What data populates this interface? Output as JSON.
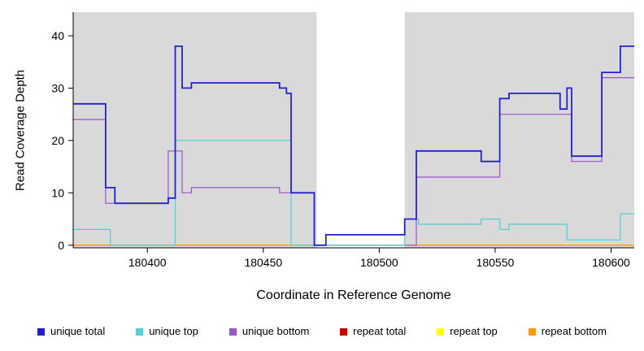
{
  "chart_data": {
    "type": "line",
    "style": "step",
    "title": "",
    "xlabel": "Coordinate in Reference Genome",
    "ylabel": "Read Coverage Depth",
    "xlim": [
      180368,
      180610
    ],
    "ylim": [
      -0.5,
      44.5
    ],
    "xticks": [
      180400,
      180450,
      180500,
      180550,
      180600
    ],
    "yticks": [
      0,
      10,
      20,
      30,
      40
    ],
    "plot_background": "#d9d9d9",
    "highlight_region": {
      "x0": 180473,
      "x1": 180511,
      "color": "#ffffff"
    },
    "series": [
      {
        "name": "repeat total",
        "color": "#cc0000",
        "width": 1.2,
        "points": [
          [
            180368,
            0
          ]
        ]
      },
      {
        "name": "repeat top",
        "color": "#ffff00",
        "width": 1.2,
        "points": [
          [
            180368,
            0
          ]
        ]
      },
      {
        "name": "repeat bottom",
        "color": "#ff9900",
        "width": 1.2,
        "points": [
          [
            180368,
            0
          ]
        ]
      },
      {
        "name": "unique bottom",
        "color": "#9955cc",
        "width": 1.2,
        "points": [
          [
            180368,
            24
          ],
          [
            180382,
            8
          ],
          [
            180409,
            18
          ],
          [
            180415,
            10
          ],
          [
            180419,
            11
          ],
          [
            180457,
            10
          ],
          [
            180472,
            0
          ],
          [
            180516,
            13
          ],
          [
            180552,
            25
          ],
          [
            180583,
            16
          ],
          [
            180596,
            32
          ]
        ]
      },
      {
        "name": "unique top",
        "color": "#4fd1d1",
        "width": 1.2,
        "points": [
          [
            180368,
            3
          ],
          [
            180384,
            0
          ],
          [
            180412,
            20
          ],
          [
            180462,
            0
          ],
          [
            180511,
            5
          ],
          [
            180517,
            4
          ],
          [
            180544,
            5
          ],
          [
            180552,
            3
          ],
          [
            180556,
            4
          ],
          [
            180581,
            1
          ],
          [
            180604,
            6
          ]
        ]
      },
      {
        "name": "unique total",
        "color": "#2222cc",
        "width": 1.8,
        "points": [
          [
            180368,
            27
          ],
          [
            180382,
            11
          ],
          [
            180386,
            8
          ],
          [
            180409,
            9
          ],
          [
            180412,
            38
          ],
          [
            180415,
            30
          ],
          [
            180419,
            31
          ],
          [
            180457,
            30
          ],
          [
            180460,
            29
          ],
          [
            180462,
            10
          ],
          [
            180472,
            0
          ],
          [
            180477,
            2
          ],
          [
            180511,
            5
          ],
          [
            180516,
            18
          ],
          [
            180544,
            16
          ],
          [
            180552,
            28
          ],
          [
            180556,
            29
          ],
          [
            180578,
            26
          ],
          [
            180581,
            30
          ],
          [
            180583,
            17
          ],
          [
            180596,
            33
          ],
          [
            180604,
            38
          ]
        ]
      }
    ],
    "legend": [
      {
        "label": "unique total",
        "color": "#2222cc"
      },
      {
        "label": "unique top",
        "color": "#4fd1d1"
      },
      {
        "label": "unique bottom",
        "color": "#9955cc"
      },
      {
        "label": "repeat total",
        "color": "#cc0000"
      },
      {
        "label": "repeat top",
        "color": "#ffff00"
      },
      {
        "label": "repeat bottom",
        "color": "#ff9900"
      }
    ],
    "legend_position": "bottom",
    "grid": false
  }
}
